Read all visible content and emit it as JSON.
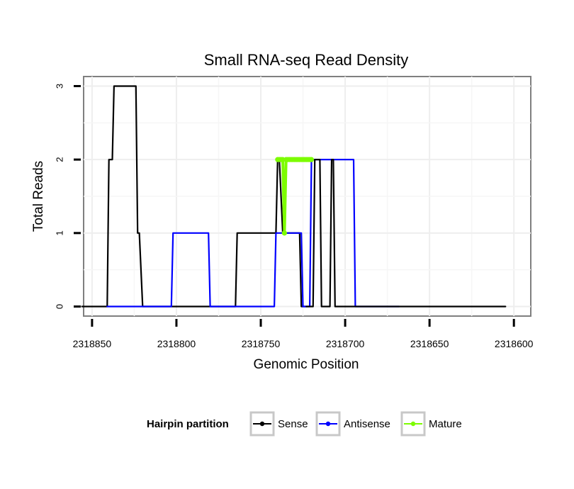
{
  "chart_data": {
    "type": "line",
    "title": "Small RNA-seq Read Density",
    "xlabel": "Genomic Position",
    "ylabel": "Total Reads",
    "xlim": [
      2318855,
      2318590
    ],
    "ylim": [
      -0.13,
      3.13
    ],
    "x_reversed": true,
    "x_ticks": [
      2318850,
      2318800,
      2318750,
      2318700,
      2318650,
      2318600
    ],
    "x_tick_labels": [
      "2318850",
      "2318800",
      "2318750",
      "2318700",
      "2318650",
      "2318600"
    ],
    "y_ticks": [
      0,
      1,
      2,
      3
    ],
    "y_tick_labels": [
      "0",
      "1",
      "2",
      "3"
    ],
    "grid": true,
    "legend": {
      "title": "Hairpin partition",
      "placement": "bottom",
      "entries": [
        "Sense",
        "Antisense",
        "Mature"
      ]
    },
    "series": [
      {
        "name": "Sense",
        "color": "#000000",
        "x": [
          2318856,
          2318841,
          2318840,
          2318838,
          2318837,
          2318824,
          2318823,
          2318822,
          2318820,
          2318819,
          2318803,
          2318765,
          2318764,
          2318741,
          2318740,
          2318739,
          2318737,
          2318727,
          2318726,
          2318725,
          2318723
        ],
        "y": [
          0,
          0,
          2,
          2,
          3,
          3,
          1,
          1,
          0,
          0,
          0,
          0,
          1,
          1,
          2,
          2,
          1,
          1,
          0,
          0,
          0
        ]
      },
      {
        "name": "Antisense",
        "color": "#0000ff",
        "x": [
          2318841,
          2318803,
          2318802,
          2318781,
          2318780,
          2318742,
          2318741,
          2318726,
          2318725,
          2318721,
          2318720,
          2318719,
          2318710,
          2318709,
          2318708,
          2318695,
          2318694,
          2318668
        ],
        "y": [
          0,
          0,
          1,
          1,
          0,
          0,
          1,
          1,
          0,
          0,
          2,
          2,
          2,
          2,
          2,
          2,
          0,
          0
        ]
      },
      {
        "name": "Sense",
        "color": "#000000",
        "x": [
          2318723,
          2318719,
          2318718,
          2318715,
          2318714,
          2318709,
          2318708,
          2318707,
          2318706,
          2318605
        ],
        "y": [
          0,
          0,
          2,
          2,
          0,
          0,
          2,
          2,
          0,
          0
        ]
      },
      {
        "name": "Mature",
        "color": "#7cfc00",
        "x": [
          2318740,
          2318739,
          2318738,
          2318737,
          2318736,
          2318735,
          2318734,
          2318733,
          2318732,
          2318731,
          2318730,
          2318729,
          2318728,
          2318727,
          2318726,
          2318725,
          2318724,
          2318723,
          2318722,
          2318721,
          2318720
        ],
        "y": [
          2,
          2,
          2,
          2,
          1,
          2,
          2,
          2,
          2,
          2,
          2,
          2,
          2,
          2,
          2,
          2,
          2,
          2,
          2,
          2,
          2
        ]
      }
    ]
  }
}
